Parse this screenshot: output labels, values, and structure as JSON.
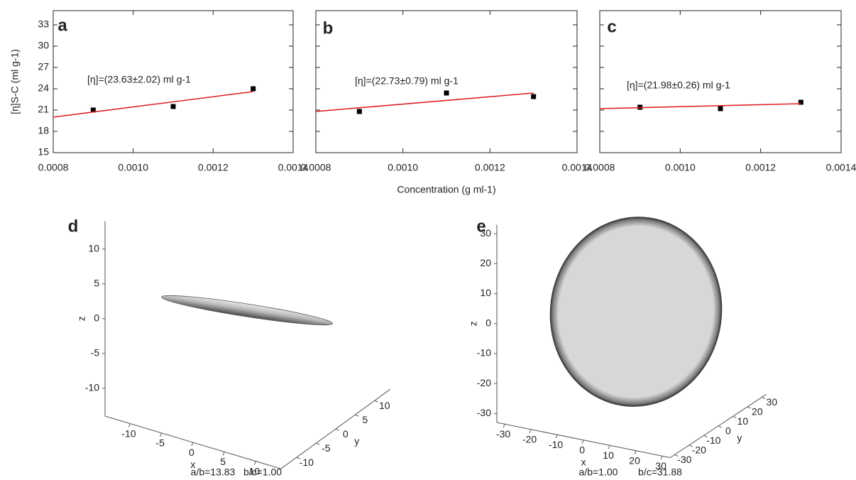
{
  "chart_data": [
    {
      "type": "scatter",
      "label": "a",
      "ylabel": "[η]S-C (ml g-1)",
      "annotation": "[η]=(23.63±2.02) ml g-1",
      "xlim": [
        0.0008,
        0.0014
      ],
      "xticks": [
        0.0008,
        {
          "value": 0.001,
          "label": "0.0010"
        },
        0.0012,
        0.0014
      ],
      "ylim": [
        15,
        35
      ],
      "yticks": [
        15,
        18,
        21,
        24,
        27,
        30,
        33
      ],
      "ytick_labels": true,
      "series": [
        {
          "kind": "marker",
          "color": "#000000",
          "x": [
            0.0009,
            0.0011,
            0.0013
          ],
          "values": [
            21.0,
            21.5,
            24.0
          ]
        },
        {
          "kind": "line",
          "color": "#e02020",
          "x": [
            0.0008,
            0.0013
          ],
          "values": [
            20.0,
            23.6
          ]
        }
      ]
    },
    {
      "type": "scatter",
      "label": "b",
      "xlabel": "Concentration (g ml-1)",
      "annotation": "[η]=(22.73±0.79) ml g-1",
      "xlim": [
        0.0008,
        0.0014
      ],
      "xticks": [
        0.0008,
        {
          "value": 0.001,
          "label": "0.0010"
        },
        0.0012,
        0.0014
      ],
      "ylim": [
        15,
        35
      ],
      "yticks": [
        15,
        18,
        21,
        24,
        27,
        30,
        33
      ],
      "ytick_labels": false,
      "series": [
        {
          "kind": "marker",
          "color": "#000000",
          "x": [
            0.0009,
            0.0011,
            0.0013
          ],
          "values": [
            20.8,
            23.4,
            22.9
          ]
        },
        {
          "kind": "line",
          "color": "#e02020",
          "x": [
            0.0008,
            0.0013
          ],
          "values": [
            20.8,
            23.4
          ]
        }
      ]
    },
    {
      "type": "scatter",
      "label": "c",
      "annotation": "[η]=(21.98±0.26) ml g-1",
      "xlim": [
        0.0008,
        0.0014
      ],
      "xticks": [
        0.0008,
        {
          "value": 0.001,
          "label": "0.0010"
        },
        0.0012,
        0.0014
      ],
      "ylim": [
        15,
        35
      ],
      "yticks": [
        15,
        18,
        21,
        24,
        27,
        30,
        33
      ],
      "ytick_labels": false,
      "series": [
        {
          "kind": "marker",
          "color": "#000000",
          "x": [
            0.0009,
            0.0011,
            0.0013
          ],
          "values": [
            21.4,
            21.2,
            22.1
          ]
        },
        {
          "kind": "line",
          "color": "#e02020",
          "x": [
            0.0008,
            0.0013
          ],
          "values": [
            21.2,
            21.9
          ]
        }
      ]
    },
    {
      "type": "surface3d",
      "label": "d",
      "xlabel": "x",
      "ylabel": "y",
      "zlabel": "z",
      "annotations": [
        "a/b=13.83",
        "b/c=1.00"
      ],
      "xlim": [
        -14,
        14
      ],
      "ylim": [
        -14,
        14
      ],
      "zlim": [
        -14,
        14
      ],
      "xticks": [
        -10,
        -5,
        0,
        5,
        10
      ],
      "yticks": [
        -10,
        -5,
        0,
        5,
        10
      ],
      "zticks": [
        -10,
        -5,
        0,
        5,
        10
      ]
    },
    {
      "type": "surface3d",
      "label": "e",
      "xlabel": "x",
      "ylabel": "y",
      "zlabel": "z",
      "annotations": [
        "a/b=1.00",
        "b/c=31.88"
      ],
      "xlim": [
        -33,
        33
      ],
      "ylim": [
        -33,
        33
      ],
      "zlim": [
        -33,
        33
      ],
      "xticks": [
        -30,
        -20,
        -10,
        0,
        10,
        20,
        30
      ],
      "yticks": [
        -30,
        -20,
        -10,
        0,
        10,
        20,
        30
      ],
      "zticks": [
        -30,
        -20,
        -10,
        0,
        10,
        20,
        30
      ]
    }
  ]
}
